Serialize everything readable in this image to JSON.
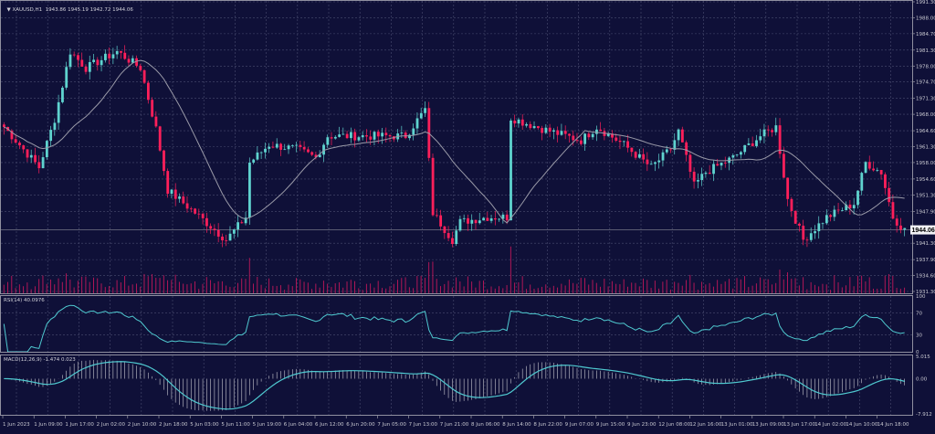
{
  "symbol": "XAUUSD,H1",
  "ohlc_header": "1943.86 1945.19 1942.72 1944.06",
  "current_price": "1944.06",
  "colors": {
    "background": "#0f1038",
    "grid": "#4a4c70",
    "bull": "#5fd3cf",
    "bear": "#ff1f5a",
    "ma": "#9a9aa8",
    "rsi": "#4fc9d0",
    "macd": "#4fc9d0",
    "volume": "#c0185a",
    "axis": "#b0b0b8"
  },
  "price_axis": [
    "1991.30",
    "1988.00",
    "1984.70",
    "1981.30",
    "1978.00",
    "1974.70",
    "1971.30",
    "1968.00",
    "1964.60",
    "1961.30",
    "1958.00",
    "1954.60",
    "1951.30",
    "1947.90",
    "1941.30",
    "1937.90",
    "1934.60",
    "1931.30"
  ],
  "price_range": [
    1931.3,
    1991.3
  ],
  "rsi": {
    "label": "RSI(14) 40.0976",
    "levels": [
      "100",
      "70",
      "30",
      "0"
    ]
  },
  "macd": {
    "label": "MACD(12,26,9) -1.474 0.023",
    "levels": [
      "5.015",
      "0.00",
      "-7.912"
    ],
    "range": [
      -7.912,
      5.015
    ]
  },
  "time_axis": [
    "1 Jun 2023",
    "1 Jun 09:00",
    "1 Jun 17:00",
    "2 Jun 02:00",
    "2 Jun 10:00",
    "2 Jun 18:00",
    "5 Jun 03:00",
    "5 Jun 11:00",
    "5 Jun 19:00",
    "6 Jun 04:00",
    "6 Jun 12:00",
    "6 Jun 20:00",
    "7 Jun 05:00",
    "7 Jun 13:00",
    "7 Jun 21:00",
    "8 Jun 06:00",
    "8 Jun 14:00",
    "8 Jun 22:00",
    "9 Jun 07:00",
    "9 Jun 15:00",
    "9 Jun 23:00",
    "12 Jun 08:00",
    "12 Jun 16:00",
    "13 Jun 01:00",
    "13 Jun 09:00",
    "13 Jun 17:00",
    "14 Jun 02:00",
    "14 Jun 10:00",
    "14 Jun 18:00"
  ],
  "chart_data": {
    "type": "candlestick",
    "timeframe": "H1",
    "ma_period": 20,
    "price_keypoints": [
      [
        0,
        1965.4
      ],
      [
        9,
        1957
      ],
      [
        13,
        1967
      ],
      [
        17,
        1981
      ],
      [
        21,
        1977.6
      ],
      [
        29,
        1981
      ],
      [
        35,
        1977.6
      ],
      [
        39,
        1965
      ],
      [
        42,
        1952.3
      ],
      [
        49,
        1947.6
      ],
      [
        57,
        1942
      ],
      [
        62,
        1946.7
      ],
      [
        63,
        1958
      ],
      [
        68,
        1961.7
      ],
      [
        75,
        1960.8
      ],
      [
        80,
        1959
      ],
      [
        83,
        1963.5
      ],
      [
        94,
        1963.5
      ],
      [
        103,
        1963.5
      ],
      [
        108,
        1969
      ],
      [
        110,
        1947.6
      ],
      [
        115,
        1942
      ],
      [
        117,
        1945.7
      ],
      [
        124,
        1946.7
      ],
      [
        129,
        1946.7
      ],
      [
        130,
        1967.3
      ],
      [
        133,
        1966.4
      ],
      [
        140,
        1964.5
      ],
      [
        148,
        1962.6
      ],
      [
        152,
        1965.4
      ],
      [
        159,
        1961.7
      ],
      [
        166,
        1957
      ],
      [
        171,
        1960.8
      ],
      [
        173,
        1964.5
      ],
      [
        177,
        1953.2
      ],
      [
        180,
        1956
      ],
      [
        187,
        1959
      ],
      [
        194,
        1963.5
      ],
      [
        198,
        1965.4
      ],
      [
        201,
        1950.4
      ],
      [
        205,
        1942
      ],
      [
        211,
        1946.7
      ],
      [
        218,
        1949.5
      ],
      [
        221,
        1958
      ],
      [
        225,
        1956
      ],
      [
        228,
        1946.7
      ],
      [
        231,
        1944
      ]
    ]
  }
}
